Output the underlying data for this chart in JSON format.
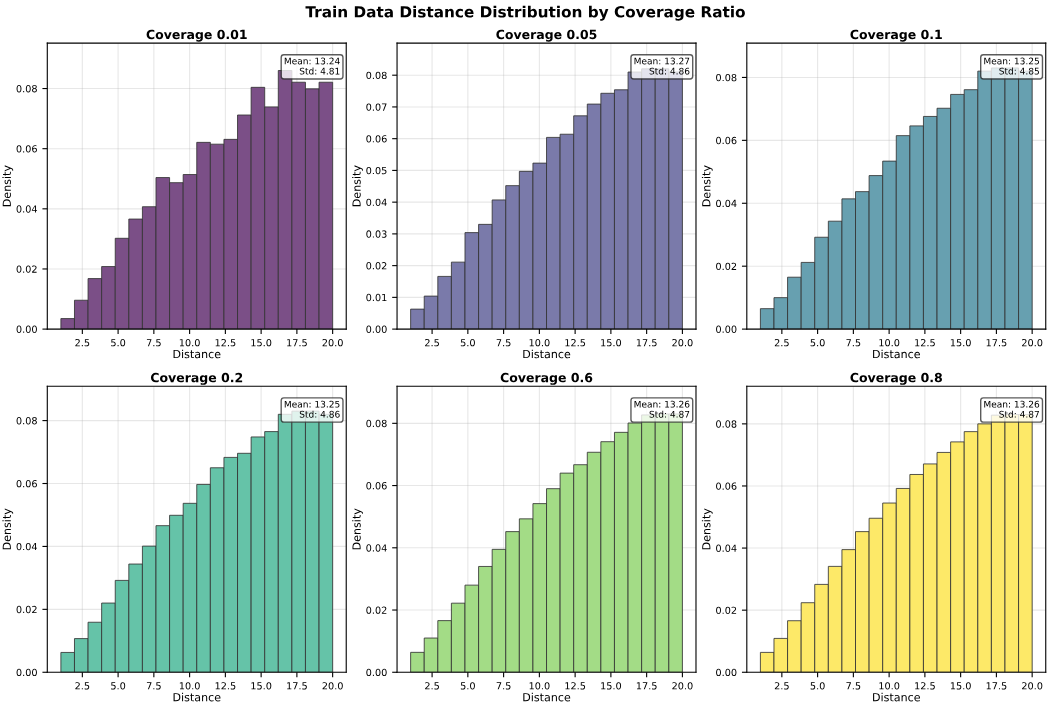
{
  "chart_data": [
    {
      "type": "other",
      "title": "Train Data Distance Distribution by Coverage Ratio"
    },
    {
      "type": "histogram",
      "title": "Coverage 0.01",
      "xlabel": "Distance",
      "ylabel": "Density",
      "color": "#7b4f87",
      "bins": [
        1,
        1.95,
        2.9,
        3.85,
        4.8,
        5.75,
        6.7,
        7.65,
        8.6,
        9.55,
        10.5,
        11.45,
        12.4,
        13.35,
        14.3,
        15.25,
        16.2,
        17.15,
        18.1,
        19.05,
        20
      ],
      "values": [
        0.0035,
        0.0096,
        0.0168,
        0.0208,
        0.0302,
        0.0366,
        0.0407,
        0.0504,
        0.0487,
        0.0514,
        0.0621,
        0.0615,
        0.0631,
        0.0712,
        0.0804,
        0.0739,
        0.086,
        0.0821,
        0.0799,
        0.0821
      ],
      "xlim": [
        0.05,
        20.95
      ],
      "ylim": [
        0,
        0.0951
      ],
      "xticks": [
        2.5,
        {
          "value": 5,
          "label": "5.0"
        },
        7.5,
        {
          "value": 10,
          "label": "10.0"
        },
        12.5,
        {
          "value": 15,
          "label": "15.0"
        },
        17.5,
        {
          "value": 20,
          "label": "20.0"
        }
      ],
      "yticks": [
        {
          "value": 0,
          "label": "0.00"
        },
        {
          "value": 0.02,
          "label": "0.02"
        },
        {
          "value": 0.04,
          "label": "0.04"
        },
        {
          "value": 0.06,
          "label": "0.06"
        },
        {
          "value": 0.08,
          "label": "0.08"
        }
      ],
      "grid": true,
      "annotations": [
        "Mean: 13.24\nStd: 4.81"
      ]
    },
    {
      "type": "histogram",
      "title": "Coverage 0.05",
      "xlabel": "Distance",
      "ylabel": "Density",
      "color": "#7a7aaa",
      "bins": [
        1,
        1.95,
        2.9,
        3.85,
        4.8,
        5.75,
        6.7,
        7.65,
        8.6,
        9.55,
        10.5,
        11.45,
        12.4,
        13.35,
        14.3,
        15.25,
        16.2,
        17.15,
        18.1,
        19.05,
        20
      ],
      "values": [
        0.0063,
        0.0104,
        0.0166,
        0.0211,
        0.0304,
        0.033,
        0.0407,
        0.0452,
        0.0497,
        0.0523,
        0.0604,
        0.0614,
        0.0672,
        0.0709,
        0.0743,
        0.0754,
        0.081,
        0.082,
        0.082,
        0.081
      ],
      "xlim": [
        0.05,
        20.95
      ],
      "ylim": [
        0,
        0.0901
      ],
      "xticks": [
        2.5,
        {
          "value": 5,
          "label": "5.0"
        },
        7.5,
        {
          "value": 10,
          "label": "10.0"
        },
        12.5,
        {
          "value": 15,
          "label": "15.0"
        },
        17.5,
        {
          "value": 20,
          "label": "20.0"
        }
      ],
      "yticks": [
        {
          "value": 0,
          "label": "0.00"
        },
        0.01,
        0.02,
        0.03,
        0.04,
        0.05,
        0.06,
        0.07,
        0.08
      ],
      "grid": true,
      "annotations": [
        "Mean: 13.27\nStd: 4.86"
      ]
    },
    {
      "type": "histogram",
      "title": "Coverage 0.1",
      "xlabel": "Distance",
      "ylabel": "Density",
      "color": "#67a0b0",
      "bins": [
        1,
        1.95,
        2.9,
        3.85,
        4.8,
        5.75,
        6.7,
        7.65,
        8.6,
        9.55,
        10.5,
        11.45,
        12.4,
        13.35,
        14.3,
        15.25,
        16.2,
        17.15,
        18.1,
        19.05,
        20
      ],
      "values": [
        0.0065,
        0.01,
        0.0165,
        0.0212,
        0.0292,
        0.0343,
        0.0414,
        0.0437,
        0.0488,
        0.0534,
        0.0615,
        0.0646,
        0.0676,
        0.0702,
        0.0746,
        0.0761,
        0.082,
        0.083,
        0.083,
        0.082
      ],
      "xlim": [
        0.05,
        20.95
      ],
      "ylim": [
        0,
        0.0909
      ],
      "xticks": [
        2.5,
        {
          "value": 5,
          "label": "5.0"
        },
        7.5,
        {
          "value": 10,
          "label": "10.0"
        },
        12.5,
        {
          "value": 15,
          "label": "15.0"
        },
        17.5,
        {
          "value": 20,
          "label": "20.0"
        }
      ],
      "yticks": [
        {
          "value": 0,
          "label": "0.00"
        },
        {
          "value": 0.02,
          "label": "0.02"
        },
        {
          "value": 0.04,
          "label": "0.04"
        },
        {
          "value": 0.06,
          "label": "0.06"
        },
        {
          "value": 0.08,
          "label": "0.08"
        }
      ],
      "grid": true,
      "annotations": [
        "Mean: 13.25\nStd: 4.85"
      ]
    },
    {
      "type": "histogram",
      "title": "Coverage 0.2",
      "xlabel": "Distance",
      "ylabel": "Density",
      "color": "#65c3a8",
      "bins": [
        1,
        1.95,
        2.9,
        3.85,
        4.8,
        5.75,
        6.7,
        7.65,
        8.6,
        9.55,
        10.5,
        11.45,
        12.4,
        13.35,
        14.3,
        15.25,
        16.2,
        17.15,
        18.1,
        19.05,
        20
      ],
      "values": [
        0.0063,
        0.0107,
        0.0159,
        0.022,
        0.0292,
        0.0344,
        0.0401,
        0.0466,
        0.0499,
        0.0537,
        0.0597,
        0.065,
        0.0683,
        0.0696,
        0.0748,
        0.0765,
        0.082,
        0.083,
        0.083,
        0.082
      ],
      "xlim": [
        0.05,
        20.95
      ],
      "ylim": [
        0,
        0.0909
      ],
      "xticks": [
        2.5,
        {
          "value": 5,
          "label": "5.0"
        },
        7.5,
        {
          "value": 10,
          "label": "10.0"
        },
        12.5,
        {
          "value": 15,
          "label": "15.0"
        },
        17.5,
        {
          "value": 20,
          "label": "20.0"
        }
      ],
      "yticks": [
        {
          "value": 0,
          "label": "0.00"
        },
        {
          "value": 0.02,
          "label": "0.02"
        },
        {
          "value": 0.04,
          "label": "0.04"
        },
        {
          "value": 0.06,
          "label": "0.06"
        },
        {
          "value": 0.08,
          "label": "0.08"
        }
      ],
      "grid": true,
      "annotations": [
        "Mean: 13.25\nStd: 4.86"
      ]
    },
    {
      "type": "histogram",
      "title": "Coverage 0.6",
      "xlabel": "Distance",
      "ylabel": "Density",
      "color": "#a3dc86",
      "bins": [
        1,
        1.95,
        2.9,
        3.85,
        4.8,
        5.75,
        6.7,
        7.65,
        8.6,
        9.55,
        10.5,
        11.45,
        12.4,
        13.35,
        14.3,
        15.25,
        16.2,
        17.15,
        18.1,
        19.05,
        20
      ],
      "values": [
        0.0064,
        0.011,
        0.0166,
        0.0222,
        0.028,
        0.034,
        0.0395,
        0.0452,
        0.0493,
        0.0542,
        0.059,
        0.064,
        0.0667,
        0.0707,
        0.0741,
        0.0771,
        0.0801,
        0.0827,
        0.083,
        0.083
      ],
      "xlim": [
        0.05,
        20.95
      ],
      "ylim": [
        0,
        0.0919
      ],
      "xticks": [
        2.5,
        {
          "value": 5,
          "label": "5.0"
        },
        7.5,
        {
          "value": 10,
          "label": "10.0"
        },
        12.5,
        {
          "value": 15,
          "label": "15.0"
        },
        17.5,
        {
          "value": 20,
          "label": "20.0"
        }
      ],
      "yticks": [
        {
          "value": 0,
          "label": "0.00"
        },
        {
          "value": 0.02,
          "label": "0.02"
        },
        {
          "value": 0.04,
          "label": "0.04"
        },
        {
          "value": 0.06,
          "label": "0.06"
        },
        {
          "value": 0.08,
          "label": "0.08"
        }
      ],
      "grid": true,
      "annotations": [
        "Mean: 13.26\nStd: 4.87"
      ]
    },
    {
      "type": "histogram",
      "title": "Coverage 0.8",
      "xlabel": "Distance",
      "ylabel": "Density",
      "color": "#fde968",
      "bins": [
        1,
        1.95,
        2.9,
        3.85,
        4.8,
        5.75,
        6.7,
        7.65,
        8.6,
        9.55,
        10.5,
        11.45,
        12.4,
        13.35,
        14.3,
        15.25,
        16.2,
        17.15,
        18.1,
        19.05,
        20
      ],
      "values": [
        0.0064,
        0.0109,
        0.0166,
        0.0224,
        0.0283,
        0.0341,
        0.0395,
        0.0453,
        0.0496,
        0.0545,
        0.0592,
        0.0637,
        0.0671,
        0.0708,
        0.0742,
        0.0775,
        0.08,
        0.0828,
        0.083,
        0.083
      ],
      "xlim": [
        0.05,
        20.95
      ],
      "ylim": [
        0,
        0.0921
      ],
      "xticks": [
        2.5,
        {
          "value": 5,
          "label": "5.0"
        },
        7.5,
        {
          "value": 10,
          "label": "10.0"
        },
        12.5,
        {
          "value": 15,
          "label": "15.0"
        },
        17.5,
        {
          "value": 20,
          "label": "20.0"
        }
      ],
      "yticks": [
        {
          "value": 0,
          "label": "0.00"
        },
        {
          "value": 0.02,
          "label": "0.02"
        },
        {
          "value": 0.04,
          "label": "0.04"
        },
        {
          "value": 0.06,
          "label": "0.06"
        },
        {
          "value": 0.08,
          "label": "0.08"
        }
      ],
      "grid": true,
      "annotations": [
        "Mean: 13.26\nStd: 4.87"
      ]
    }
  ]
}
